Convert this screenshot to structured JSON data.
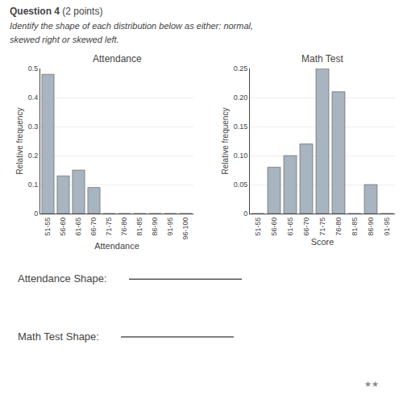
{
  "chart_data": [
    {
      "type": "bar",
      "title": "Attendance",
      "xlabel": "Attendance",
      "ylabel": "Relative frequency",
      "categories": [
        "51-55",
        "56-60",
        "61-65",
        "66-70",
        "71-75",
        "76-80",
        "81-85",
        "86-90",
        "91-95",
        "96-100"
      ],
      "values": [
        0.48,
        0.13,
        0.15,
        0.09,
        0.0,
        0.0,
        0.0,
        0.0,
        0.0,
        0.0
      ],
      "color": "#a8b4bf",
      "ylim": [
        0,
        0.5
      ],
      "yticks": [
        0,
        0.1,
        0.2,
        0.3,
        0.4,
        0.5
      ],
      "grid": true
    },
    {
      "type": "bar",
      "title": "Math Test",
      "xlabel": "Score",
      "ylabel": "Relative frequency",
      "categories": [
        "51-55",
        "56-60",
        "61-65",
        "66-70",
        "71-75",
        "76-80",
        "81-85",
        "86-90",
        "91-95"
      ],
      "values": [
        0.0,
        0.08,
        0.1,
        0.12,
        0.25,
        0.21,
        0.0,
        0.05,
        0.0
      ],
      "color": "#a8b4bf",
      "ylim": [
        0,
        0.25
      ],
      "yticks": [
        0,
        0.05,
        {
          "value": 0.1,
          "label": "0.10"
        },
        0.15,
        {
          "value": 0.2,
          "label": "0.20"
        },
        0.25
      ],
      "grid": true
    }
  ],
  "annotations": [
    "Question 4",
    " (2 points)",
    "Identify the shape of each distribution below as either: normal,",
    "skewed right or skewed left.",
    "Attendance Shape:",
    "Math Test Shape:",
    "★★"
  ]
}
